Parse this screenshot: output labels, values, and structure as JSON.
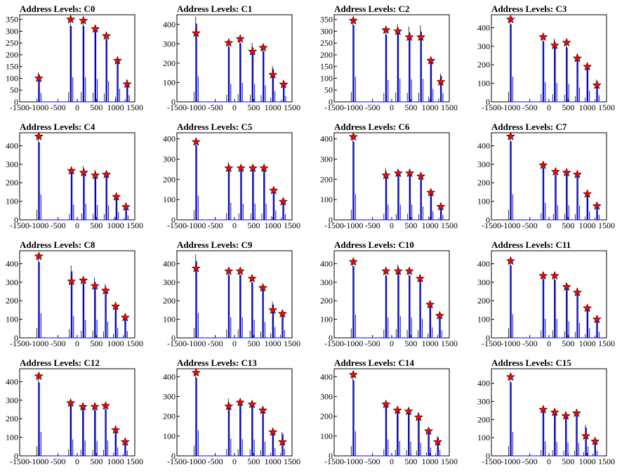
{
  "chart_data": [
    {
      "type": "histogram",
      "title": "Address Levels: C0",
      "xlim": [
        -1500,
        1500
      ],
      "ylim": [
        0,
        370
      ],
      "yticks": [
        0,
        50,
        100,
        150,
        200,
        250,
        300,
        350
      ],
      "peaks": [
        {
          "x": -1000,
          "height": 125,
          "marker": 100
        },
        {
          "x": -170,
          "height": 350,
          "marker": 350
        },
        {
          "x": 160,
          "height": 350,
          "marker": 345
        },
        {
          "x": 470,
          "height": 325,
          "marker": 310
        },
        {
          "x": 760,
          "height": 290,
          "marker": 280
        },
        {
          "x": 1050,
          "height": 185,
          "marker": 175
        },
        {
          "x": 1300,
          "height": 95,
          "marker": 75
        }
      ]
    },
    {
      "type": "histogram",
      "title": "Address Levels: C1",
      "xlim": [
        -1500,
        1500
      ],
      "ylim": [
        0,
        450
      ],
      "yticks": [
        0,
        100,
        200,
        300,
        400
      ],
      "peaks": [
        {
          "x": -1000,
          "height": 440,
          "marker": 355
        },
        {
          "x": -150,
          "height": 310,
          "marker": 305
        },
        {
          "x": 150,
          "height": 330,
          "marker": 325
        },
        {
          "x": 470,
          "height": 305,
          "marker": 260
        },
        {
          "x": 750,
          "height": 285,
          "marker": 280
        },
        {
          "x": 1000,
          "height": 185,
          "marker": 140
        },
        {
          "x": 1280,
          "height": 100,
          "marker": 90
        }
      ]
    },
    {
      "type": "histogram",
      "title": "Address Levels: C2",
      "xlim": [
        -1500,
        1500
      ],
      "ylim": [
        0,
        370
      ],
      "yticks": [
        0,
        50,
        100,
        150,
        200,
        250,
        300,
        350
      ],
      "peaks": [
        {
          "x": -1000,
          "height": 355,
          "marker": 345
        },
        {
          "x": -150,
          "height": 310,
          "marker": 305
        },
        {
          "x": 160,
          "height": 330,
          "marker": 300
        },
        {
          "x": 460,
          "height": 320,
          "marker": 275
        },
        {
          "x": 760,
          "height": 325,
          "marker": 275
        },
        {
          "x": 1020,
          "height": 185,
          "marker": 175
        },
        {
          "x": 1280,
          "height": 120,
          "marker": 85
        }
      ]
    },
    {
      "type": "histogram",
      "title": "Address Levels: C3",
      "xlim": [
        -1500,
        1500
      ],
      "ylim": [
        0,
        470
      ],
      "yticks": [
        0,
        100,
        200,
        300,
        400
      ],
      "peaks": [
        {
          "x": -1000,
          "height": 455,
          "marker": 445
        },
        {
          "x": -150,
          "height": 355,
          "marker": 350
        },
        {
          "x": 150,
          "height": 340,
          "marker": 305
        },
        {
          "x": 460,
          "height": 320,
          "marker": 320
        },
        {
          "x": 740,
          "height": 260,
          "marker": 235
        },
        {
          "x": 1000,
          "height": 200,
          "marker": 190
        },
        {
          "x": 1250,
          "height": 120,
          "marker": 90
        }
      ]
    },
    {
      "type": "histogram",
      "title": "Address Levels: C4",
      "xlim": [
        -1500,
        1500
      ],
      "ylim": [
        0,
        470
      ],
      "yticks": [
        0,
        100,
        200,
        300,
        400
      ],
      "peaks": [
        {
          "x": -1000,
          "height": 455,
          "marker": 450
        },
        {
          "x": -150,
          "height": 275,
          "marker": 265
        },
        {
          "x": 170,
          "height": 290,
          "marker": 255
        },
        {
          "x": 470,
          "height": 270,
          "marker": 240
        },
        {
          "x": 760,
          "height": 260,
          "marker": 245
        },
        {
          "x": 1020,
          "height": 140,
          "marker": 125
        },
        {
          "x": 1270,
          "height": 80,
          "marker": 70
        }
      ]
    },
    {
      "type": "histogram",
      "title": "Address Levels: C5",
      "xlim": [
        -1500,
        1500
      ],
      "ylim": [
        0,
        430
      ],
      "yticks": [
        0,
        100,
        200,
        300,
        400
      ],
      "peaks": [
        {
          "x": -1000,
          "height": 400,
          "marker": 385
        },
        {
          "x": -150,
          "height": 285,
          "marker": 255
        },
        {
          "x": 170,
          "height": 265,
          "marker": 255
        },
        {
          "x": 480,
          "height": 265,
          "marker": 255
        },
        {
          "x": 770,
          "height": 265,
          "marker": 255
        },
        {
          "x": 1020,
          "height": 155,
          "marker": 145
        },
        {
          "x": 1270,
          "height": 95,
          "marker": 90
        }
      ]
    },
    {
      "type": "histogram",
      "title": "Address Levels: C6",
      "xlim": [
        -1500,
        1500
      ],
      "ylim": [
        0,
        430
      ],
      "yticks": [
        0,
        100,
        200,
        300,
        400
      ],
      "peaks": [
        {
          "x": -1000,
          "height": 420,
          "marker": 410
        },
        {
          "x": -150,
          "height": 255,
          "marker": 220
        },
        {
          "x": 170,
          "height": 250,
          "marker": 230
        },
        {
          "x": 470,
          "height": 250,
          "marker": 230
        },
        {
          "x": 760,
          "height": 220,
          "marker": 215
        },
        {
          "x": 1020,
          "height": 145,
          "marker": 135
        },
        {
          "x": 1280,
          "height": 80,
          "marker": 65
        }
      ]
    },
    {
      "type": "histogram",
      "title": "Address Levels: C7",
      "xlim": [
        -1500,
        1500
      ],
      "ylim": [
        0,
        470
      ],
      "yticks": [
        0,
        100,
        200,
        300,
        400
      ],
      "peaks": [
        {
          "x": -1000,
          "height": 460,
          "marker": 450
        },
        {
          "x": -150,
          "height": 305,
          "marker": 295
        },
        {
          "x": 170,
          "height": 265,
          "marker": 260
        },
        {
          "x": 460,
          "height": 265,
          "marker": 255
        },
        {
          "x": 740,
          "height": 255,
          "marker": 245
        },
        {
          "x": 1000,
          "height": 150,
          "marker": 140
        },
        {
          "x": 1250,
          "height": 90,
          "marker": 75
        }
      ]
    },
    {
      "type": "histogram",
      "title": "Address Levels: C8",
      "xlim": [
        -1500,
        1500
      ],
      "ylim": [
        0,
        470
      ],
      "yticks": [
        0,
        100,
        200,
        300,
        400
      ],
      "peaks": [
        {
          "x": -1000,
          "height": 445,
          "marker": 440
        },
        {
          "x": -150,
          "height": 390,
          "marker": 305
        },
        {
          "x": 160,
          "height": 320,
          "marker": 310
        },
        {
          "x": 460,
          "height": 325,
          "marker": 280
        },
        {
          "x": 740,
          "height": 290,
          "marker": 255
        },
        {
          "x": 1000,
          "height": 180,
          "marker": 170
        },
        {
          "x": 1250,
          "height": 120,
          "marker": 110
        }
      ]
    },
    {
      "type": "histogram",
      "title": "Address Levels: C9",
      "xlim": [
        -1500,
        1500
      ],
      "ylim": [
        0,
        470
      ],
      "yticks": [
        0,
        100,
        200,
        300,
        400
      ],
      "peaks": [
        {
          "x": -1000,
          "height": 450,
          "marker": 375
        },
        {
          "x": -150,
          "height": 370,
          "marker": 360
        },
        {
          "x": 150,
          "height": 370,
          "marker": 360
        },
        {
          "x": 460,
          "height": 325,
          "marker": 320
        },
        {
          "x": 740,
          "height": 285,
          "marker": 270
        },
        {
          "x": 1000,
          "height": 195,
          "marker": 150
        },
        {
          "x": 1250,
          "height": 140,
          "marker": 130
        }
      ]
    },
    {
      "type": "histogram",
      "title": "Address Levels: C10",
      "xlim": [
        -1500,
        1500
      ],
      "ylim": [
        0,
        470
      ],
      "yticks": [
        0,
        100,
        200,
        300,
        400
      ],
      "peaks": [
        {
          "x": -1000,
          "height": 420,
          "marker": 410
        },
        {
          "x": -150,
          "height": 365,
          "marker": 360
        },
        {
          "x": 170,
          "height": 395,
          "marker": 360
        },
        {
          "x": 460,
          "height": 365,
          "marker": 360
        },
        {
          "x": 740,
          "height": 340,
          "marker": 320
        },
        {
          "x": 1000,
          "height": 190,
          "marker": 180
        },
        {
          "x": 1250,
          "height": 135,
          "marker": 120
        }
      ]
    },
    {
      "type": "histogram",
      "title": "Address Levels: C11",
      "xlim": [
        -1500,
        1500
      ],
      "ylim": [
        0,
        470
      ],
      "yticks": [
        0,
        100,
        200,
        300,
        400
      ],
      "peaks": [
        {
          "x": -1000,
          "height": 425,
          "marker": 415
        },
        {
          "x": -150,
          "height": 345,
          "marker": 335
        },
        {
          "x": 150,
          "height": 340,
          "marker": 335
        },
        {
          "x": 460,
          "height": 295,
          "marker": 275
        },
        {
          "x": 740,
          "height": 270,
          "marker": 245
        },
        {
          "x": 1000,
          "height": 170,
          "marker": 160
        },
        {
          "x": 1250,
          "height": 110,
          "marker": 100
        }
      ]
    },
    {
      "type": "histogram",
      "title": "Address Levels: C12",
      "xlim": [
        -1500,
        1500
      ],
      "ylim": [
        0,
        470
      ],
      "yticks": [
        0,
        100,
        200,
        300,
        400
      ],
      "peaks": [
        {
          "x": -1000,
          "height": 430,
          "marker": 430
        },
        {
          "x": -170,
          "height": 295,
          "marker": 285
        },
        {
          "x": 150,
          "height": 275,
          "marker": 265
        },
        {
          "x": 460,
          "height": 270,
          "marker": 265
        },
        {
          "x": 740,
          "height": 275,
          "marker": 270
        },
        {
          "x": 1000,
          "height": 150,
          "marker": 140
        },
        {
          "x": 1250,
          "height": 90,
          "marker": 75
        }
      ]
    },
    {
      "type": "histogram",
      "title": "Address Levels: C13",
      "xlim": [
        -1500,
        1500
      ],
      "ylim": [
        0,
        440
      ],
      "yticks": [
        0,
        100,
        200,
        300,
        400
      ],
      "peaks": [
        {
          "x": -1000,
          "height": 430,
          "marker": 420
        },
        {
          "x": -150,
          "height": 290,
          "marker": 250
        },
        {
          "x": 150,
          "height": 280,
          "marker": 270
        },
        {
          "x": 460,
          "height": 275,
          "marker": 260
        },
        {
          "x": 740,
          "height": 240,
          "marker": 230
        },
        {
          "x": 1000,
          "height": 130,
          "marker": 120
        },
        {
          "x": 1250,
          "height": 120,
          "marker": 70
        }
      ]
    },
    {
      "type": "histogram",
      "title": "Address Levels: C14",
      "xlim": [
        -1500,
        1500
      ],
      "ylim": [
        0,
        440
      ],
      "yticks": [
        0,
        100,
        200,
        300,
        400
      ],
      "peaks": [
        {
          "x": -1000,
          "height": 415,
          "marker": 410
        },
        {
          "x": -150,
          "height": 275,
          "marker": 260
        },
        {
          "x": 150,
          "height": 250,
          "marker": 230
        },
        {
          "x": 440,
          "height": 240,
          "marker": 225
        },
        {
          "x": 700,
          "height": 220,
          "marker": 195
        },
        {
          "x": 960,
          "height": 140,
          "marker": 125
        },
        {
          "x": 1200,
          "height": 100,
          "marker": 70
        }
      ]
    },
    {
      "type": "histogram",
      "title": "Address Levels: C15",
      "xlim": [
        -1500,
        1500
      ],
      "ylim": [
        0,
        480
      ],
      "yticks": [
        0,
        100,
        200,
        300,
        400
      ],
      "peaks": [
        {
          "x": -1000,
          "height": 440,
          "marker": 435
        },
        {
          "x": -150,
          "height": 265,
          "marker": 255
        },
        {
          "x": 150,
          "height": 255,
          "marker": 240
        },
        {
          "x": 440,
          "height": 245,
          "marker": 220
        },
        {
          "x": 720,
          "height": 240,
          "marker": 235
        },
        {
          "x": 960,
          "height": 170,
          "marker": 110
        },
        {
          "x": 1200,
          "height": 95,
          "marker": 80
        }
      ]
    }
  ],
  "xticks": [
    -1500,
    -1000,
    -500,
    0,
    500,
    1000,
    1500
  ],
  "colors": {
    "histogram": "#0000ff",
    "histogram_base": "#000000",
    "marker": "#ff0000",
    "marker_edge": "#000000",
    "axis": "#000000"
  },
  "marker_shape": "star-icon"
}
